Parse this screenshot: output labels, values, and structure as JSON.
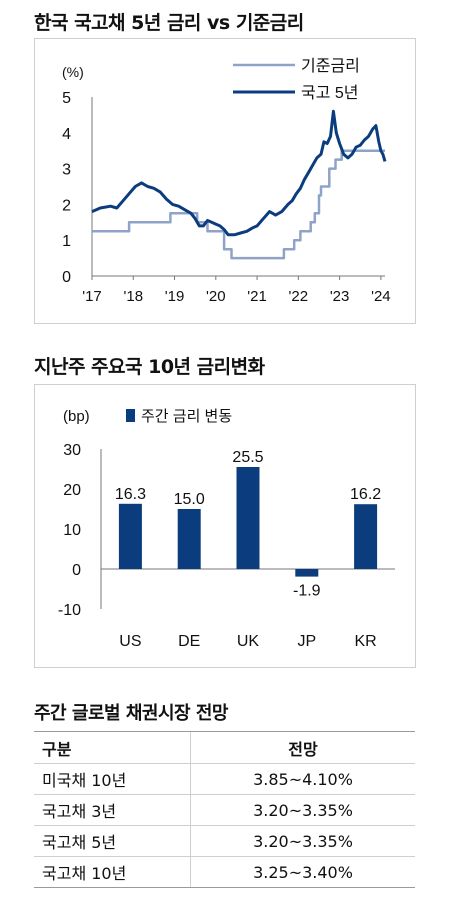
{
  "line_chart_title": "한국 국고채 5년 금리 vs 기준금리",
  "bar_chart_title": "지난주 주요국 10년 금리변화",
  "table": {
    "title": "주간 글로벌 채권시장 전망",
    "headers": [
      "구분",
      "전망"
    ],
    "rows": [
      [
        "미국채 10년",
        "3.85~4.10%"
      ],
      [
        "국고채 3년",
        "3.20~3.35%"
      ],
      [
        "국고채 5년",
        "3.20~3.35%"
      ],
      [
        "국고채 10년",
        "3.25~3.40%"
      ]
    ]
  },
  "colors": {
    "base_rate": "#8fa3c8",
    "ktb5": "#0b3d7e",
    "bar": "#0b3d7e"
  },
  "chart_data": [
    {
      "type": "line",
      "title": "한국 국고채 5년 금리 vs 기준금리",
      "ylabel": "(%)",
      "ylim": [
        0,
        5
      ],
      "yticks": [
        0,
        1,
        2,
        3,
        4,
        5
      ],
      "xlim": [
        2017,
        2024.1
      ],
      "xticks": [
        2017,
        2018,
        2019,
        2020,
        2021,
        2022,
        2023,
        2024
      ],
      "xtick_labels": [
        "'17",
        "'18",
        "'19",
        "'20",
        "'21",
        "'22",
        "'23",
        "'24"
      ],
      "legend_position": "top-right",
      "series": [
        {
          "name": "기준금리",
          "step": true,
          "x": [
            2017.0,
            2017.9,
            2018.9,
            2019.55,
            2019.8,
            2020.2,
            2020.38,
            2021.65,
            2021.9,
            2022.05,
            2022.3,
            2022.4,
            2022.5,
            2022.55,
            2022.75,
            2022.9,
            2023.05,
            2024.1
          ],
          "values": [
            1.25,
            1.5,
            1.75,
            1.5,
            1.25,
            0.75,
            0.5,
            0.75,
            1.0,
            1.25,
            1.5,
            1.75,
            2.25,
            2.5,
            3.0,
            3.25,
            3.5,
            3.5
          ]
        },
        {
          "name": "국고 5년",
          "step": false,
          "x": [
            2017.0,
            2017.2,
            2017.45,
            2017.6,
            2017.75,
            2017.9,
            2018.05,
            2018.2,
            2018.35,
            2018.5,
            2018.65,
            2018.8,
            2018.95,
            2019.1,
            2019.25,
            2019.4,
            2019.5,
            2019.6,
            2019.7,
            2019.8,
            2019.9,
            2020.0,
            2020.1,
            2020.2,
            2020.3,
            2020.45,
            2020.6,
            2020.75,
            2020.9,
            2021.0,
            2021.15,
            2021.3,
            2021.45,
            2021.6,
            2021.75,
            2021.85,
            2021.95,
            2022.05,
            2022.15,
            2022.25,
            2022.35,
            2022.45,
            2022.55,
            2022.62,
            2022.7,
            2022.78,
            2022.85,
            2022.92,
            2023.0,
            2023.1,
            2023.2,
            2023.3,
            2023.4,
            2023.5,
            2023.6,
            2023.7,
            2023.75,
            2023.8,
            2023.88,
            2023.95,
            2024.0,
            2024.05,
            2024.1
          ],
          "values": [
            1.8,
            1.9,
            1.95,
            1.9,
            2.1,
            2.3,
            2.5,
            2.6,
            2.5,
            2.45,
            2.35,
            2.15,
            2.0,
            1.95,
            1.85,
            1.75,
            1.6,
            1.4,
            1.4,
            1.55,
            1.5,
            1.45,
            1.4,
            1.3,
            1.15,
            1.15,
            1.2,
            1.25,
            1.35,
            1.4,
            1.6,
            1.8,
            1.7,
            1.8,
            2.0,
            2.1,
            2.3,
            2.45,
            2.7,
            2.9,
            3.1,
            3.3,
            3.4,
            3.75,
            3.7,
            3.9,
            4.6,
            4.0,
            3.7,
            3.4,
            3.3,
            3.4,
            3.6,
            3.65,
            3.8,
            3.9,
            4.0,
            4.1,
            4.2,
            3.75,
            3.5,
            3.4,
            3.2
          ]
        }
      ]
    },
    {
      "type": "bar",
      "title": "지난주 주요국 10년 금리변화",
      "ylabel": "(bp)",
      "ylim": [
        -10,
        30
      ],
      "yticks": [
        -10,
        0,
        10,
        20,
        30
      ],
      "legend_position": "top-left",
      "categories": [
        "US",
        "DE",
        "UK",
        "JP",
        "KR"
      ],
      "series": [
        {
          "name": "주간 금리 변동",
          "values": [
            16.3,
            15.0,
            25.5,
            -1.9,
            16.2
          ]
        }
      ]
    }
  ]
}
